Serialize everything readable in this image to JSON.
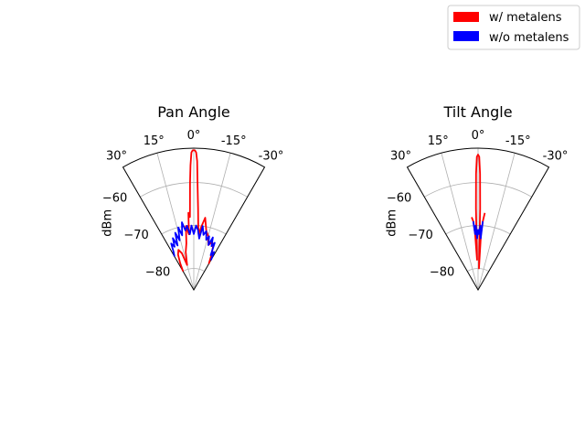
{
  "chart_data": [
    {
      "type": "line",
      "projection": "polar-sector",
      "title": "Pan Angle",
      "theta_ticks": [
        "30°",
        "15°",
        "0°",
        "-15°",
        "-30°"
      ],
      "r_label": "dBm",
      "r_ticks": [
        "−60",
        "−70",
        "−80"
      ],
      "r_range": [
        -85,
        -52
      ],
      "theta_range_deg": [
        -30,
        30
      ],
      "grid": true,
      "series": [
        {
          "name": "w/ metalens",
          "color": "#ff0000",
          "x_deg": [
            30,
            27,
            24,
            21,
            18,
            15,
            12,
            9,
            7,
            5,
            4,
            3,
            2,
            1.5,
            1,
            0.5,
            0,
            -0.5,
            -1,
            -1.5,
            -2,
            -3,
            -4,
            -5,
            -7,
            -9,
            -12,
            -15,
            -18,
            -21,
            -24,
            -27,
            -30
          ],
          "y": [
            -80,
            -78,
            -76,
            -75,
            -76,
            -79,
            -76,
            -74,
            -70,
            -72,
            -67,
            -68,
            -60,
            -56,
            -53,
            -52.5,
            -52.5,
            -52.5,
            -53,
            -55,
            -60,
            -66,
            -70,
            -72,
            -70,
            -68,
            -71,
            -72,
            -74,
            -73,
            -74,
            -76,
            -78
          ]
        },
        {
          "name": "w/o metalens",
          "color": "#0000ff",
          "x_deg": [
            30,
            28,
            26,
            24,
            22,
            20,
            18,
            16,
            14,
            12,
            10,
            8,
            6,
            4,
            2,
            0,
            -2,
            -4,
            -6,
            -8,
            -10,
            -12,
            -14,
            -16,
            -18,
            -20,
            -22,
            -24,
            -26,
            -28,
            -30
          ],
          "y": [
            -76,
            -75,
            -73,
            -74,
            -72,
            -74,
            -71,
            -73,
            -70,
            -72,
            -69,
            -71,
            -70,
            -72,
            -70,
            -72,
            -70,
            -71,
            -73,
            -70,
            -72,
            -71,
            -73,
            -72,
            -74,
            -72,
            -74,
            -73,
            -76,
            -75,
            -77
          ]
        }
      ]
    },
    {
      "type": "line",
      "projection": "polar-sector",
      "title": "Tilt Angle",
      "theta_ticks": [
        "30°",
        "15°",
        "0°",
        "-15°",
        "-30°"
      ],
      "r_label": "dBm",
      "r_ticks": [
        "−60",
        "−70",
        "−80"
      ],
      "r_range": [
        -85,
        -52
      ],
      "theta_range_deg": [
        -30,
        30
      ],
      "grid": true,
      "series": [
        {
          "name": "w/ metalens",
          "color": "#ff0000",
          "x_deg": [
            5,
            4,
            3,
            2.5,
            2,
            1.5,
            1,
            0.5,
            0,
            -0.5,
            -1,
            -1.5,
            -2,
            -2.5,
            -3,
            -4,
            -5
          ],
          "y": [
            -68,
            -69,
            -72,
            -76,
            -78,
            -66,
            -58,
            -54,
            -53.5,
            -54,
            -58,
            -66,
            -78,
            -80,
            -72,
            -69,
            -67
          ]
        },
        {
          "name": "w/o metalens",
          "color": "#0000ff",
          "x_deg": [
            4,
            3,
            2,
            1,
            0,
            -1,
            -2,
            -3,
            -4
          ],
          "y": [
            -69,
            -72,
            -70,
            -73,
            -71,
            -72,
            -70,
            -73,
            -69
          ]
        }
      ]
    }
  ],
  "legend": {
    "placement": "top-right",
    "items": [
      {
        "label": "w/ metalens",
        "color": "#ff0000"
      },
      {
        "label": "w/o metalens",
        "color": "#0000ff"
      }
    ]
  }
}
